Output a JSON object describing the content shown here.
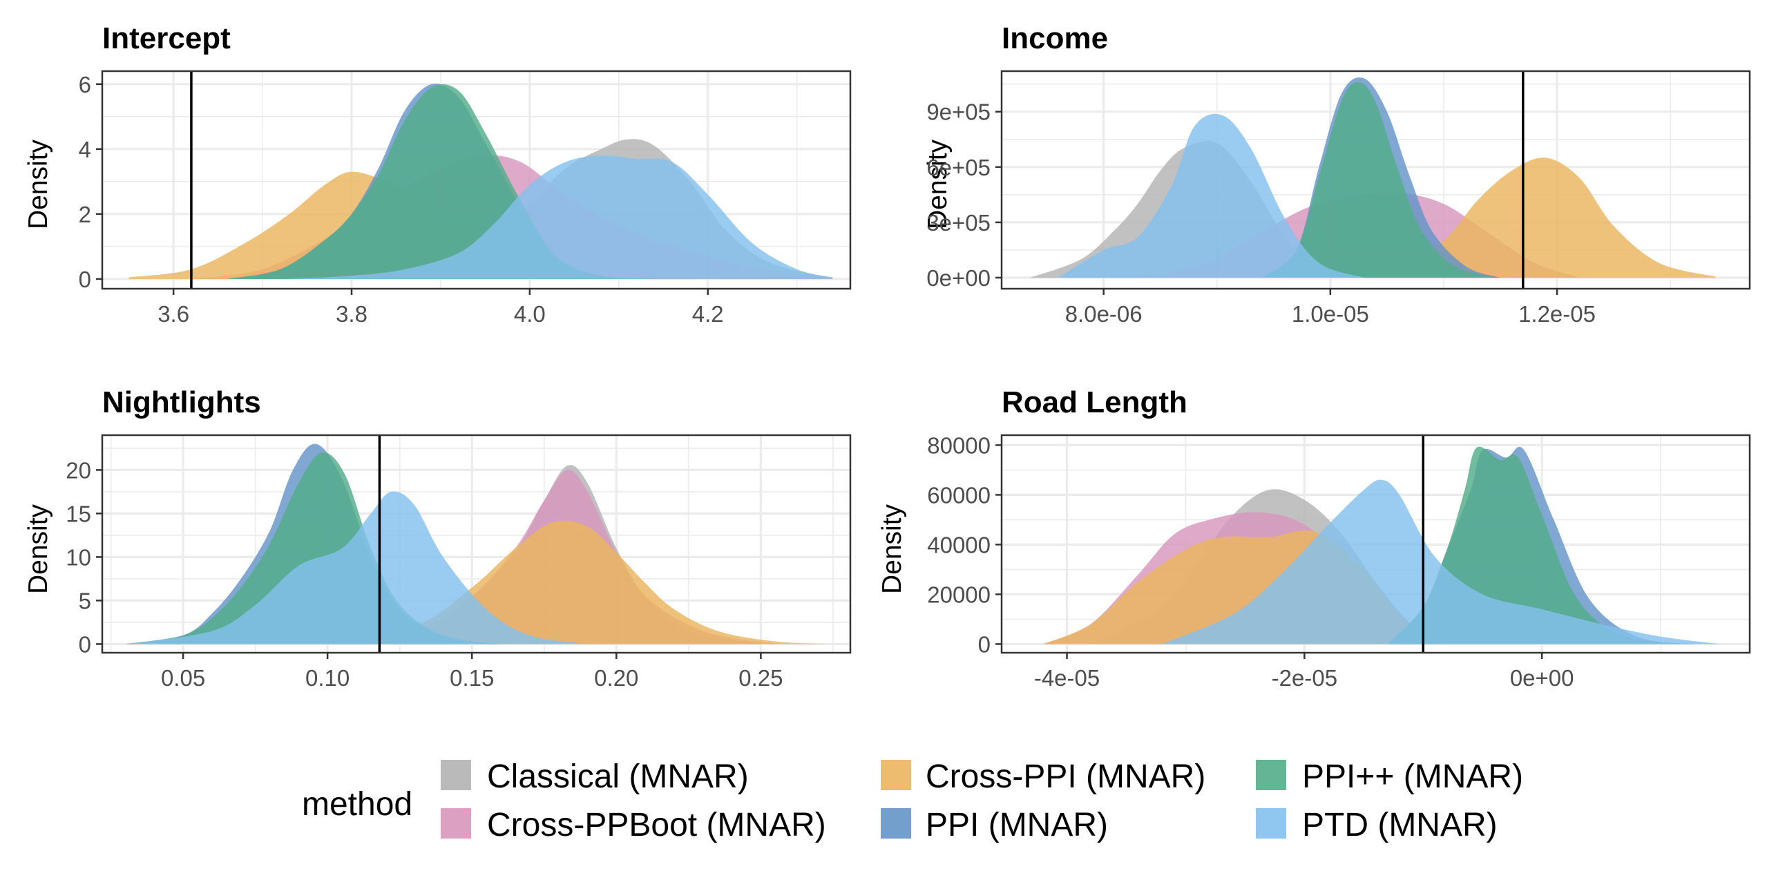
{
  "colors": {
    "Classical (MNAR)": "#b3b3b3",
    "Cross-PPBoot (MNAR)": "#d896bd",
    "Cross-PPI (MNAR)": "#ebb55e",
    "PPI (MNAR)": "#6495c8",
    "PPI++ (MNAR)": "#52ad8a",
    "PTD (MNAR)": "#84c1ee"
  },
  "legend": {
    "title": "method",
    "items": [
      "Classical (MNAR)",
      "Cross-PPBoot (MNAR)",
      "Cross-PPI (MNAR)",
      "PPI (MNAR)",
      "PPI++ (MNAR)",
      "PTD (MNAR)"
    ]
  },
  "chart_data": [
    {
      "type": "area",
      "title": "Intercept",
      "xlabel": "",
      "ylabel": "Density",
      "xlim": [
        3.52,
        4.36
      ],
      "ylim": [
        -0.3,
        6.4
      ],
      "xticks": [
        3.6,
        3.8,
        4.0,
        4.2
      ],
      "xtick_labels": [
        "3.6",
        "3.8",
        "4.0",
        "4.2"
      ],
      "yticks": [
        0,
        2,
        4,
        6
      ],
      "ytick_labels": [
        "0",
        "2",
        "4",
        "6"
      ],
      "true_value": 3.62,
      "series": [
        {
          "name": "Classical (MNAR)",
          "x": [
            3.7,
            3.78,
            3.84,
            3.9,
            3.96,
            4.0,
            4.04,
            4.08,
            4.11,
            4.14,
            4.18,
            4.22,
            4.27,
            4.34
          ],
          "y": [
            0,
            0.05,
            0.2,
            0.6,
            1.2,
            2.3,
            3.4,
            4.0,
            4.3,
            4.1,
            3.0,
            1.5,
            0.5,
            0.03
          ]
        },
        {
          "name": "Cross-PPBoot (MNAR)",
          "x": [
            3.62,
            3.7,
            3.78,
            3.84,
            3.9,
            3.95,
            3.99,
            4.03,
            4.08,
            4.14,
            4.2,
            4.26,
            4.34
          ],
          "y": [
            0,
            0.3,
            1.4,
            2.5,
            3.4,
            3.8,
            3.6,
            2.8,
            1.9,
            1.2,
            0.7,
            0.3,
            0.03
          ]
        },
        {
          "name": "Cross-PPI (MNAR)",
          "x": [
            3.55,
            3.62,
            3.68,
            3.73,
            3.77,
            3.8,
            3.84,
            3.88,
            3.92,
            3.96,
            4.0,
            4.04,
            4.08,
            4.14
          ],
          "y": [
            0.05,
            0.3,
            1.1,
            2.0,
            2.9,
            3.3,
            3.0,
            2.5,
            1.8,
            1.0,
            0.5,
            0.2,
            0.05,
            0
          ]
        },
        {
          "name": "PPI (MNAR)",
          "x": [
            3.66,
            3.72,
            3.77,
            3.8,
            3.83,
            3.86,
            3.89,
            3.92,
            3.95,
            3.99,
            4.03,
            4.08,
            4.14
          ],
          "y": [
            0,
            0.3,
            1.2,
            2.0,
            3.4,
            5.2,
            6.0,
            5.6,
            4.2,
            2.2,
            0.6,
            0.1,
            0
          ]
        },
        {
          "name": "PPI++ (MNAR)",
          "x": [
            3.66,
            3.72,
            3.77,
            3.8,
            3.83,
            3.86,
            3.89,
            3.92,
            3.95,
            3.99,
            4.03,
            4.08,
            4.14
          ],
          "y": [
            0,
            0.3,
            1.2,
            2.0,
            3.2,
            4.9,
            5.9,
            5.8,
            4.5,
            2.4,
            0.7,
            0.1,
            0
          ]
        },
        {
          "name": "PTD (MNAR)",
          "x": [
            3.72,
            3.8,
            3.86,
            3.92,
            3.96,
            4.0,
            4.04,
            4.08,
            4.12,
            4.16,
            4.2,
            4.25,
            4.3,
            4.34
          ],
          "y": [
            0,
            0.1,
            0.3,
            0.8,
            1.7,
            2.9,
            3.6,
            3.8,
            3.7,
            3.6,
            2.6,
            1.1,
            0.3,
            0.05
          ]
        }
      ]
    },
    {
      "type": "area",
      "title": "Income",
      "xlabel": "",
      "ylabel": "Density",
      "xlim": [
        7.1e-06,
        1.37e-05
      ],
      "ylim": [
        -60000,
        1120000
      ],
      "xticks": [
        8e-06,
        1e-05,
        1.2e-05
      ],
      "xtick_labels": [
        "8.0e-06",
        "1.0e-05",
        "1.2e-05"
      ],
      "yticks": [
        0,
        300000,
        600000,
        900000
      ],
      "ytick_labels": [
        "0e+00",
        "3e+05",
        "6e+05",
        "9e+05"
      ],
      "true_value": 1.17e-05,
      "series": [
        {
          "name": "Classical (MNAR)",
          "x": [
            7.35e-06,
            7.8e-06,
            8.1e-06,
            8.3e-06,
            8.5e-06,
            8.7e-06,
            9e-06,
            9.3e-06,
            9.6e-06,
            9.9e-06,
            1.02e-05
          ],
          "y": [
            0,
            100000,
            260000,
            400000,
            580000,
            700000,
            730000,
            520000,
            220000,
            50000,
            0
          ]
        },
        {
          "name": "Cross-PPBoot (MNAR)",
          "x": [
            8.3e-06,
            8.9e-06,
            9.4e-06,
            9.8e-06,
            1.02e-05,
            1.06e-05,
            1.1e-05,
            1.14e-05,
            1.18e-05,
            1.22e-05
          ],
          "y": [
            0,
            80000,
            250000,
            380000,
            440000,
            460000,
            400000,
            240000,
            80000,
            0
          ]
        },
        {
          "name": "Cross-PPI (MNAR)",
          "x": [
            1.02e-05,
            1.06e-05,
            1.1e-05,
            1.13e-05,
            1.16e-05,
            1.19e-05,
            1.22e-05,
            1.25e-05,
            1.29e-05,
            1.34e-05
          ],
          "y": [
            0,
            60000,
            200000,
            420000,
            580000,
            650000,
            540000,
            280000,
            80000,
            5000
          ]
        },
        {
          "name": "PPI (MNAR)",
          "x": [
            9.4e-06,
            9.7e-06,
            9.9e-06,
            1.01e-05,
            1.03e-05,
            1.05e-05,
            1.07e-05,
            1.09e-05,
            1.12e-05,
            1.15e-05
          ],
          "y": [
            0,
            150000,
            600000,
            1000000,
            1080000,
            900000,
            550000,
            250000,
            60000,
            0
          ]
        },
        {
          "name": "PPI++ (MNAR)",
          "x": [
            9.4e-06,
            9.7e-06,
            9.9e-06,
            1.01e-05,
            1.025e-05,
            1.04e-05,
            1.06e-05,
            1.08e-05,
            1.11e-05,
            1.15e-05
          ],
          "y": [
            0,
            150000,
            550000,
            960000,
            1060000,
            950000,
            580000,
            260000,
            60000,
            0
          ]
        },
        {
          "name": "PTD (MNAR)",
          "x": [
            7.6e-06,
            8e-06,
            8.3e-06,
            8.6e-06,
            8.8e-06,
            9.05e-06,
            9.3e-06,
            9.6e-06,
            9.9e-06,
            1.03e-05
          ],
          "y": [
            0,
            150000,
            220000,
            500000,
            820000,
            880000,
            700000,
            320000,
            80000,
            0
          ]
        }
      ]
    },
    {
      "type": "area",
      "title": "Nightlights",
      "xlabel": "",
      "ylabel": "Density",
      "xlim": [
        0.022,
        0.281
      ],
      "ylim": [
        -1.0,
        24.0
      ],
      "xticks": [
        0.05,
        0.1,
        0.15,
        0.2,
        0.25
      ],
      "xtick_labels": [
        "0.05",
        "0.10",
        "0.15",
        "0.20",
        "0.25"
      ],
      "yticks": [
        0,
        5,
        10,
        15,
        20
      ],
      "ytick_labels": [
        "0",
        "5",
        "10",
        "15",
        "20"
      ],
      "true_value": 0.118,
      "series": [
        {
          "name": "Classical (MNAR)",
          "x": [
            0.1,
            0.13,
            0.15,
            0.165,
            0.175,
            0.183,
            0.19,
            0.2,
            0.21,
            0.225,
            0.25
          ],
          "y": [
            0,
            1.5,
            5.5,
            10.5,
            16.5,
            20.5,
            18.5,
            11.0,
            5.5,
            1.5,
            0
          ]
        },
        {
          "name": "Cross-PPBoot (MNAR)",
          "x": [
            0.1,
            0.13,
            0.15,
            0.165,
            0.175,
            0.183,
            0.19,
            0.2,
            0.21,
            0.23,
            0.255
          ],
          "y": [
            0,
            1.5,
            5.5,
            11.0,
            16.5,
            20.0,
            17.5,
            10.5,
            5.5,
            1.5,
            0
          ]
        },
        {
          "name": "Cross-PPI (MNAR)",
          "x": [
            0.1,
            0.13,
            0.15,
            0.165,
            0.178,
            0.19,
            0.2,
            0.21,
            0.22,
            0.235,
            0.255,
            0.275
          ],
          "y": [
            0,
            2.0,
            6.5,
            11.0,
            14.0,
            13.5,
            10.5,
            7.0,
            4.0,
            1.5,
            0.3,
            0
          ]
        },
        {
          "name": "PPI (MNAR)",
          "x": [
            0.03,
            0.05,
            0.06,
            0.07,
            0.08,
            0.088,
            0.096,
            0.105,
            0.115,
            0.125,
            0.14,
            0.16
          ],
          "y": [
            0,
            1.0,
            3.5,
            7.5,
            13.0,
            20.0,
            23.0,
            19.0,
            10.0,
            4.0,
            0.8,
            0
          ]
        },
        {
          "name": "PPI++ (MNAR)",
          "x": [
            0.03,
            0.05,
            0.06,
            0.07,
            0.08,
            0.09,
            0.098,
            0.106,
            0.115,
            0.125,
            0.14,
            0.16
          ],
          "y": [
            0,
            1.0,
            3.0,
            6.5,
            11.5,
            18.5,
            22.0,
            19.5,
            11.0,
            4.5,
            1.0,
            0
          ]
        },
        {
          "name": "PTD (MNAR)",
          "x": [
            0.03,
            0.06,
            0.075,
            0.09,
            0.105,
            0.115,
            0.122,
            0.13,
            0.14,
            0.155,
            0.17,
            0.19
          ],
          "y": [
            0,
            1.5,
            4.5,
            9.0,
            11.0,
            15.0,
            17.5,
            16.0,
            10.0,
            4.0,
            1.0,
            0
          ]
        }
      ]
    },
    {
      "type": "area",
      "title": "Road Length",
      "xlabel": "",
      "ylabel": "Density",
      "xlim": [
        -4.55e-05,
        1.75e-05
      ],
      "ylim": [
        -3500,
        84000
      ],
      "xticks": [
        -4e-05,
        -2e-05,
        0
      ],
      "xtick_labels": [
        "-4e-05",
        "-2e-05",
        "0e+00"
      ],
      "yticks": [
        0,
        20000,
        40000,
        60000,
        80000
      ],
      "ytick_labels": [
        "0",
        "20000",
        "40000",
        "60000",
        "80000"
      ],
      "true_value": -1e-05,
      "series": [
        {
          "name": "Classical (MNAR)",
          "x": [
            -3.8e-05,
            -3.2e-05,
            -2.9e-05,
            -2.6e-05,
            -2.3e-05,
            -2e-05,
            -1.7e-05,
            -1.4e-05,
            -1.1e-05,
            -8e-06
          ],
          "y": [
            0,
            15000,
            33000,
            52000,
            62000,
            58000,
            45000,
            25000,
            8000,
            0
          ]
        },
        {
          "name": "Cross-PPBoot (MNAR)",
          "x": [
            -4.2e-05,
            -3.8e-05,
            -3.4e-05,
            -3.1e-05,
            -2.8e-05,
            -2.4e-05,
            -2e-05,
            -1.6e-05,
            -1.2e-05,
            -8e-06
          ],
          "y": [
            0,
            8000,
            28000,
            44000,
            50000,
            53000,
            48000,
            30000,
            10000,
            0
          ]
        },
        {
          "name": "Cross-PPI (MNAR)",
          "x": [
            -4.2e-05,
            -3.8e-05,
            -3.4e-05,
            -3e-05,
            -2.7e-05,
            -2.3e-05,
            -1.9e-05,
            -1.5e-05,
            -1.2e-05,
            -9e-06
          ],
          "y": [
            0,
            8000,
            25000,
            38000,
            43000,
            43000,
            45000,
            30000,
            12000,
            0
          ]
        },
        {
          "name": "PPI (MNAR)",
          "x": [
            -1.3e-05,
            -1e-05,
            -8e-06,
            -6e-06,
            -5e-06,
            -3e-06,
            -1.5e-06,
            1e-06,
            4e-06,
            8e-06,
            1.3e-05
          ],
          "y": [
            0,
            15000,
            38000,
            62000,
            78000,
            75000,
            78000,
            50000,
            18000,
            3000,
            0
          ]
        },
        {
          "name": "PPI++ (MNAR)",
          "x": [
            -1.3e-05,
            -1e-05,
            -8e-06,
            -6.5e-06,
            -5.5e-06,
            -3.5e-06,
            -2e-06,
            0,
            3e-06,
            7e-06,
            1.3e-05
          ],
          "y": [
            0,
            15000,
            38000,
            62000,
            79000,
            74000,
            75000,
            52000,
            18000,
            3000,
            0
          ]
        },
        {
          "name": "PTD (MNAR)",
          "x": [
            -3.2e-05,
            -2.6e-05,
            -2.2e-05,
            -1.8e-05,
            -1.5e-05,
            -1.35e-05,
            -1.2e-05,
            -9e-06,
            -5e-06,
            0,
            5e-06,
            1e-05,
            1.5e-05
          ],
          "y": [
            0,
            12000,
            28000,
            48000,
            62000,
            66000,
            60000,
            35000,
            20000,
            14000,
            8000,
            3000,
            0
          ]
        }
      ]
    }
  ]
}
